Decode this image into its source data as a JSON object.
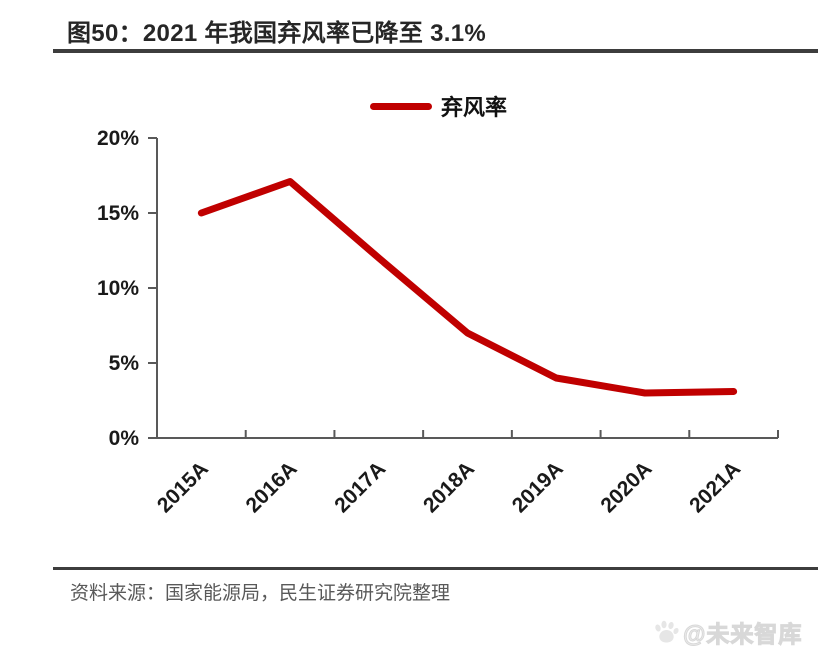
{
  "title": "图50：2021 年我国弃风率已降至 3.1%",
  "legend": {
    "label": "弃风率"
  },
  "source": "资料来源：国家能源局，民生证券研究院整理",
  "watermark": {
    "text": "@未来智库",
    "icon": "paw-logo-icon"
  },
  "colors": {
    "line": "#c00000",
    "axis": "#595959",
    "tick_label": "#1a1a1a",
    "title_text": "#262626",
    "rule": "#3d3d3d",
    "source_text": "#595959",
    "watermark_text": "#ececec"
  },
  "chart_data": {
    "type": "line",
    "title": "2021 年我国弃风率已降至 3.1%",
    "categories": [
      "2015A",
      "2016A",
      "2017A",
      "2018A",
      "2019A",
      "2020A",
      "2021A"
    ],
    "series": [
      {
        "name": "弃风率",
        "values": [
          15.0,
          17.1,
          12.0,
          7.0,
          4.0,
          3.0,
          3.1
        ]
      }
    ],
    "xlabel": "",
    "ylabel": "",
    "ylim": [
      0,
      20
    ],
    "ytick_step": 5,
    "ytick_labels": [
      "0%",
      "5%",
      "10%",
      "15%",
      "20%"
    ],
    "legend_position": "top-center",
    "grid": false
  }
}
